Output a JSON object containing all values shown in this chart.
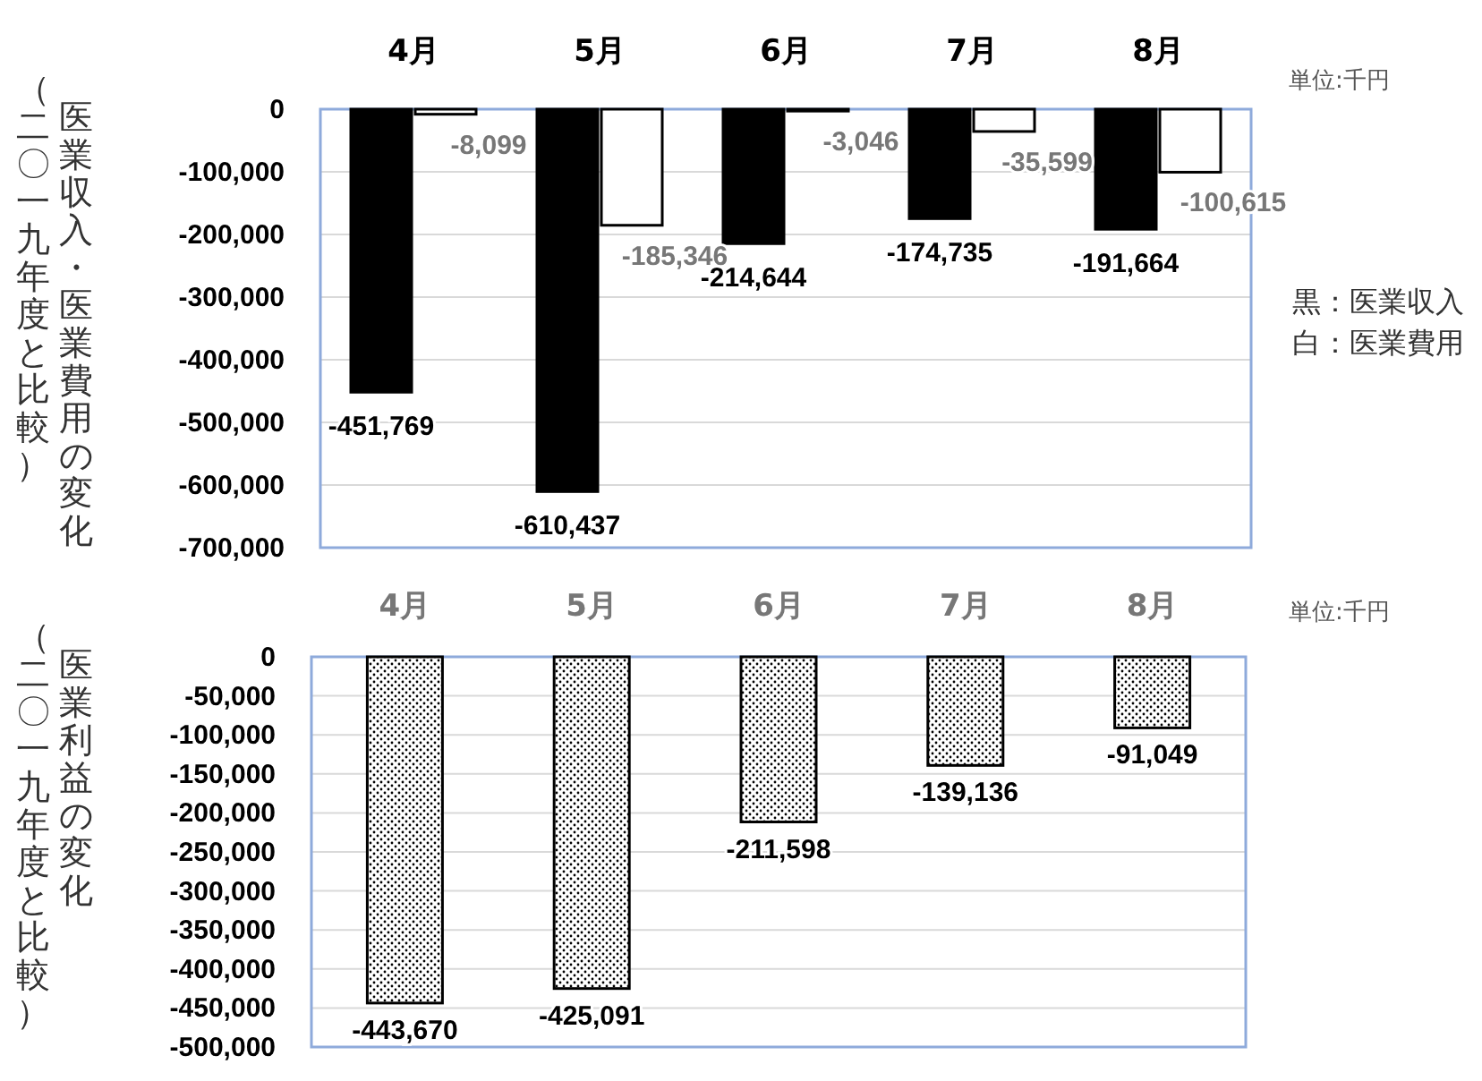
{
  "chart_data": [
    {
      "type": "bar",
      "ylabel": "医業収入・医業費用の変化",
      "categories": [
        "4月",
        "5月",
        "6月",
        "7月",
        "8月"
      ],
      "series": [
        {
          "color": "#000000",
          "values": [
            -451769,
            -610437,
            -214644,
            -174735,
            -191664
          ],
          "value_labels": [
            "-451,769",
            "-610,437",
            "-214,644",
            "-174,735",
            "-191,664"
          ]
        },
        {
          "color": "#ffffff",
          "values": [
            -8099,
            -185346,
            -3046,
            -35599,
            -100615
          ],
          "value_labels": [
            "-8,099",
            "-185,346",
            "-3,046",
            "-35,599",
            "-100,615"
          ]
        }
      ],
      "ylim": [
        -700000,
        0
      ],
      "yticks": [
        {
          "value": 0,
          "label": "0"
        },
        {
          "value": -100000,
          "label": "-100,000"
        },
        {
          "value": -200000,
          "label": "-200,000"
        },
        {
          "value": -300000,
          "label": "-300,000"
        },
        {
          "value": -400000,
          "label": "-400,000"
        },
        {
          "value": -500000,
          "label": "-500,000"
        },
        {
          "value": -600000,
          "label": "-600,000"
        },
        {
          "value": -700000,
          "label": "-700,000"
        }
      ],
      "grid": "y",
      "annotations": [
        "単位:千円",
        "（二〇一九年度と比較）",
        "黒：医業収入",
        "白：医業費用"
      ]
    },
    {
      "type": "bar",
      "ylabel": "医業利益の変化",
      "categories": [
        "4月",
        "5月",
        "6月",
        "7月",
        "8月"
      ],
      "series": [
        {
          "color": "#000000",
          "values": [
            -443670,
            -425091,
            -211598,
            -139136,
            -91049
          ],
          "value_labels": [
            "-443,670",
            "-425,091",
            "-211,598",
            "-139,136",
            "-91,049"
          ]
        }
      ],
      "ylim": [
        -500000,
        0
      ],
      "yticks": [
        {
          "value": 0,
          "label": "0"
        },
        {
          "value": -50000,
          "label": "-50,000"
        },
        {
          "value": -100000,
          "label": "-100,000"
        },
        {
          "value": -150000,
          "label": "-150,000"
        },
        {
          "value": -200000,
          "label": "-200,000"
        },
        {
          "value": -250000,
          "label": "-250,000"
        },
        {
          "value": -300000,
          "label": "-300,000"
        },
        {
          "value": -350000,
          "label": "-350,000"
        },
        {
          "value": -400000,
          "label": "-400,000"
        },
        {
          "value": -450000,
          "label": "-450,000"
        },
        {
          "value": -500000,
          "label": "-500,000"
        }
      ],
      "grid": "y",
      "annotations": [
        "単位:千円",
        "（二〇一九年度と比較）"
      ]
    }
  ]
}
